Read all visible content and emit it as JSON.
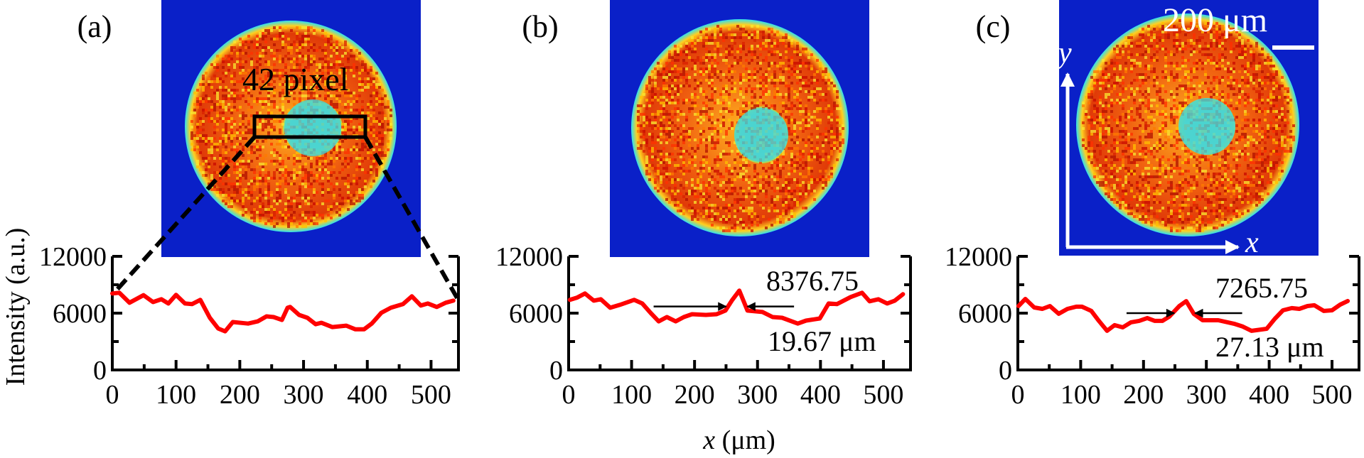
{
  "figure": {
    "ylabel": "Intensity (a.u.)",
    "xlabel_var": "x",
    "xlabel_unit": " (μm)",
    "colors": {
      "curve": "#ff0000",
      "background_blue": "#0a1fc8",
      "rim_cyan": "#33e0f0",
      "spot_cyan": "#3fd6d0",
      "disk_orange": "#f05a10",
      "annotation": "#000000",
      "overlay_white": "#ffffff"
    }
  },
  "panels": [
    {
      "label": "(a)",
      "image_annotation": "42 pixel",
      "has_roi_box": true
    },
    {
      "label": "(b)",
      "peak_value_label": "8376.75",
      "width_label": "19.67 μm"
    },
    {
      "label": "(c)",
      "scale_bar_label": "200 μm",
      "axis_x_label": "x",
      "axis_y_label": "y",
      "peak_value_label": "7265.75",
      "width_label": "27.13 μm"
    }
  ],
  "chart_data": [
    {
      "type": "line",
      "title": "(a)",
      "xlabel": "",
      "ylabel": "Intensity (a.u.)",
      "xlim": [
        0,
        543
      ],
      "ylim": [
        0,
        12000
      ],
      "xticks": [
        0,
        100,
        200,
        300,
        400,
        500
      ],
      "yticks": [
        0,
        6000,
        12000
      ],
      "grid": false,
      "series": [
        {
          "name": "intensity profile (a)",
          "x": [
            0,
            11,
            27,
            49,
            64,
            77,
            88,
            100,
            114,
            125,
            138,
            153,
            166,
            177,
            189,
            213,
            228,
            242,
            253,
            266,
            275,
            279,
            293,
            306,
            319,
            328,
            345,
            367,
            381,
            395,
            407,
            422,
            437,
            456,
            470,
            484,
            495,
            509,
            523,
            535
          ],
          "y": [
            8080,
            8150,
            7100,
            7900,
            7170,
            7470,
            7020,
            7930,
            7020,
            6950,
            7400,
            5510,
            4380,
            4080,
            5060,
            4900,
            5130,
            5660,
            5590,
            5280,
            6570,
            6650,
            5810,
            5510,
            4830,
            4980,
            4530,
            4680,
            4300,
            4300,
            4900,
            6040,
            6570,
            6950,
            7780,
            6800,
            7020,
            6650,
            7100,
            7320
          ]
        }
      ]
    },
    {
      "type": "line",
      "title": "(b)",
      "xlabel": "x (μm)",
      "ylabel": "",
      "xlim": [
        0,
        543
      ],
      "ylim": [
        0,
        12000
      ],
      "xticks": [
        0,
        100,
        200,
        300,
        400,
        500
      ],
      "yticks": [
        0,
        6000,
        12000
      ],
      "grid": false,
      "annotations": [
        "8376.75",
        "19.67 μm"
      ],
      "series": [
        {
          "name": "intensity profile (b)",
          "x": [
            2,
            13,
            26,
            40,
            51,
            66,
            81,
            104,
            117,
            130,
            143,
            156,
            170,
            183,
            196,
            218,
            235,
            249,
            260,
            271,
            284,
            308,
            324,
            339,
            364,
            377,
            399,
            413,
            426,
            448,
            466,
            478,
            492,
            506,
            518,
            531
          ],
          "y": [
            7400,
            7630,
            8080,
            7320,
            7470,
            6570,
            6870,
            7400,
            7020,
            6040,
            5130,
            5590,
            5130,
            5590,
            5890,
            5810,
            5890,
            6270,
            7400,
            8377,
            6270,
            6120,
            5590,
            5510,
            4900,
            5210,
            5440,
            7020,
            6950,
            7700,
            8150,
            7250,
            7470,
            7020,
            7320,
            8000
          ]
        }
      ],
      "fwhm_arrows_x": [
        [
          135,
          250
        ],
        [
          358,
          284
        ]
      ]
    },
    {
      "type": "line",
      "title": "(c)",
      "xlabel": "",
      "ylabel": "",
      "xlim": [
        0,
        543
      ],
      "ylim": [
        0,
        12000
      ],
      "xticks": [
        0,
        100,
        200,
        300,
        400,
        500
      ],
      "yticks": [
        0,
        6000,
        12000
      ],
      "grid": false,
      "annotations": [
        "7265.75",
        "27.13 μm"
      ],
      "series": [
        {
          "name": "intensity profile (c)",
          "x": [
            1,
            12,
            26,
            39,
            51,
            65,
            79,
            93,
            102,
            117,
            129,
            142,
            154,
            167,
            180,
            193,
            206,
            218,
            230,
            241,
            257,
            268,
            280,
            294,
            319,
            344,
            358,
            372,
            396,
            409,
            422,
            436,
            448,
            461,
            472,
            487,
            500,
            513,
            525
          ],
          "y": [
            6750,
            7500,
            6600,
            6450,
            6750,
            5930,
            6450,
            6680,
            6680,
            6230,
            5180,
            4130,
            4730,
            4500,
            5030,
            5180,
            5480,
            5180,
            5180,
            5630,
            6750,
            7266,
            5930,
            5250,
            5250,
            4880,
            4580,
            4130,
            4350,
            5400,
            6300,
            6530,
            6450,
            6750,
            6830,
            6230,
            6300,
            6900,
            7280
          ]
        }
      ],
      "fwhm_arrows_x": [
        [
          173,
          249
        ],
        [
          357,
          282
        ]
      ]
    }
  ]
}
